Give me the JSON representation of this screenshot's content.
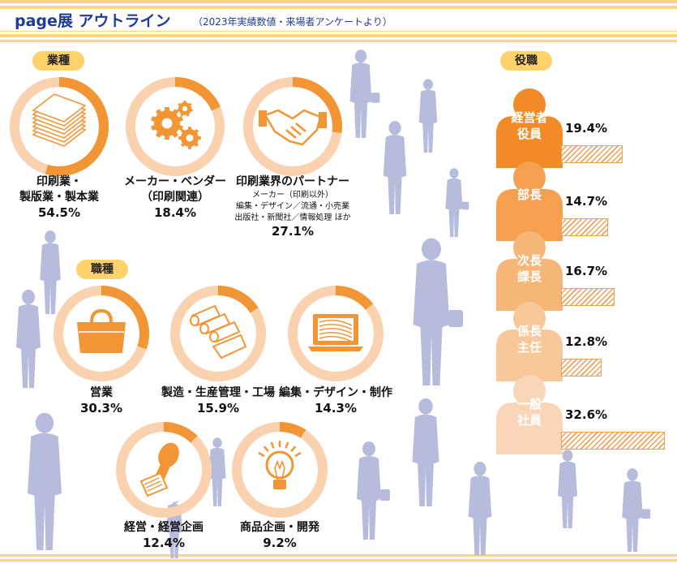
{
  "header": {
    "title": "page展 アウトライン",
    "subtitle": "（2023年実績数値・来場者アンケートより）"
  },
  "sections": {
    "industry_label": "業種",
    "job_label": "職種",
    "role_label": "役職"
  },
  "colors": {
    "accent": "#f29535",
    "ring_bg": "#fbd2b0",
    "title_blue": "#1e3c96",
    "pill": "#ffd26a",
    "silhouette": "#b8bcdc"
  },
  "chart_data": [
    {
      "type": "pie",
      "title": "業種",
      "categories": [
        "印刷業・製版業・製本業",
        "メーカー・ベンダー（印刷関連）",
        "印刷業界のパートナー"
      ],
      "values": [
        54.5,
        18.4,
        27.1
      ],
      "items": [
        {
          "lines": [
            "印刷業・",
            "製版業・製本業"
          ],
          "sub": [],
          "value": 54.5,
          "pct_text": "54.5%",
          "icon": "paper-stack-icon"
        },
        {
          "lines": [
            "メーカー・ベンダー",
            "（印刷関連）"
          ],
          "sub": [],
          "value": 18.4,
          "pct_text": "18.4%",
          "icon": "gears-icon"
        },
        {
          "lines": [
            "印刷業界のパートナー"
          ],
          "sub": [
            "メーカー（印刷以外）",
            "編集・デザイン／流通・小売業",
            "出版社・新聞社／情報処理 ほか"
          ],
          "value": 27.1,
          "pct_text": "27.1%",
          "icon": "handshake-icon"
        }
      ]
    },
    {
      "type": "pie",
      "title": "職種",
      "categories": [
        "営業",
        "製造・生産管理・工場",
        "編集・デザイン・制作",
        "経営・経営企画",
        "商品企画・開発"
      ],
      "values": [
        30.3,
        15.9,
        14.3,
        12.4,
        9.2
      ],
      "items": [
        {
          "lines": [
            "営業"
          ],
          "sub": [],
          "value": 30.3,
          "pct_text": "30.3%",
          "icon": "briefcase-icon"
        },
        {
          "lines": [
            "製造・生産管理・工場"
          ],
          "sub": [],
          "value": 15.9,
          "pct_text": "15.9%",
          "icon": "paper-rolls-icon"
        },
        {
          "lines": [
            "編集・デザイン・制作"
          ],
          "sub": [],
          "value": 14.3,
          "pct_text": "14.3%",
          "icon": "laptop-icon"
        },
        {
          "lines": [
            "経営・経営企画"
          ],
          "sub": [],
          "value": 12.4,
          "pct_text": "12.4%",
          "icon": "stamp-icon"
        },
        {
          "lines": [
            "商品企画・開発"
          ],
          "sub": [],
          "value": 9.2,
          "pct_text": "9.2%",
          "icon": "lightbulb-icon"
        }
      ]
    },
    {
      "type": "bar",
      "title": "役職",
      "categories": [
        "経営者役員",
        "部長",
        "次長課長",
        "係長主任",
        "一般社員"
      ],
      "values": [
        19.4,
        14.7,
        16.7,
        12.8,
        32.6
      ],
      "items": [
        {
          "lines": [
            "経営者",
            "役員"
          ],
          "value": 19.4,
          "pct_text": "19.4%",
          "color": "#f28a28"
        },
        {
          "lines": [
            "部長"
          ],
          "value": 14.7,
          "pct_text": "14.7%",
          "color": "#f4a050"
        },
        {
          "lines": [
            "次長",
            "課長"
          ],
          "value": 16.7,
          "pct_text": "16.7%",
          "color": "#f6b678"
        },
        {
          "lines": [
            "係長",
            "主任"
          ],
          "value": 12.8,
          "pct_text": "12.8%",
          "color": "#f8c89a"
        },
        {
          "lines": [
            "一般",
            "社員"
          ],
          "value": 32.6,
          "pct_text": "32.6%",
          "color": "#fad6b8"
        }
      ]
    }
  ]
}
